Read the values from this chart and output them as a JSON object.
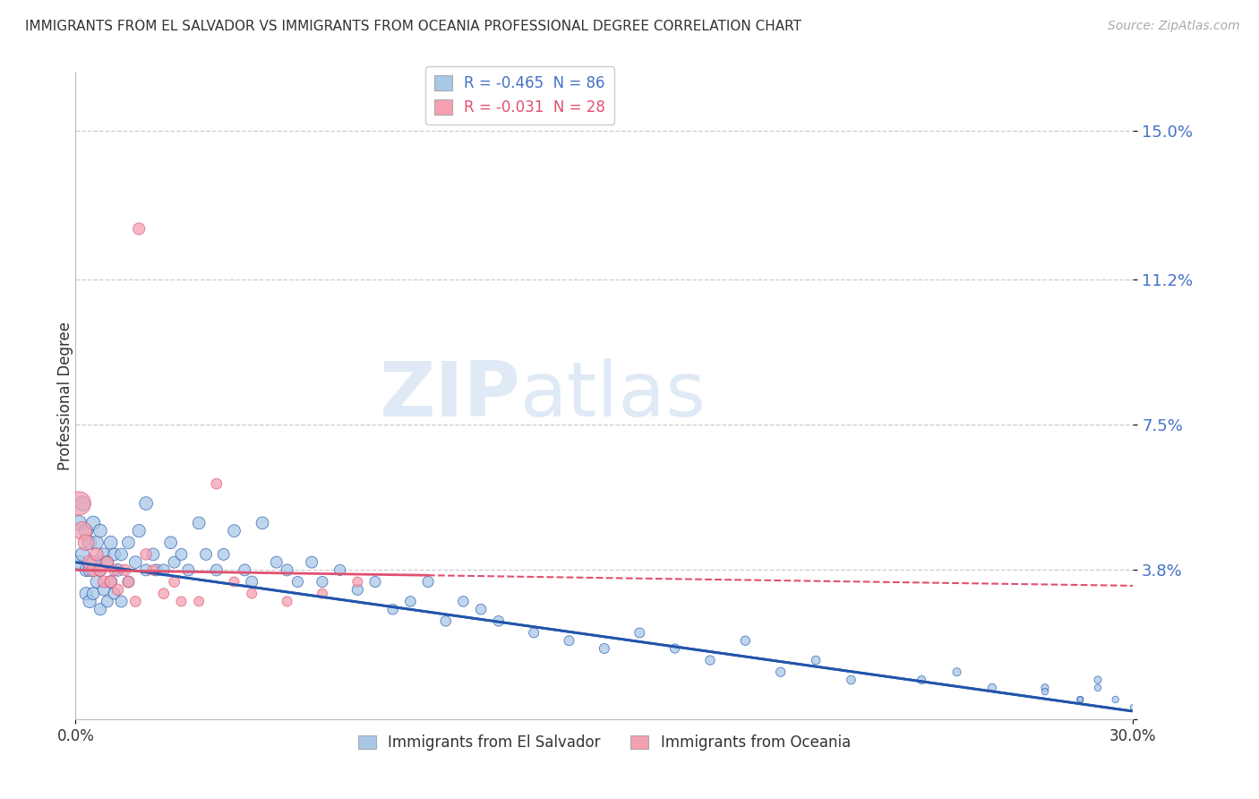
{
  "title": "IMMIGRANTS FROM EL SALVADOR VS IMMIGRANTS FROM OCEANIA PROFESSIONAL DEGREE CORRELATION CHART",
  "source": "Source: ZipAtlas.com",
  "ylabel": "Professional Degree",
  "yticks": [
    0.0,
    0.038,
    0.075,
    0.112,
    0.15
  ],
  "ytick_labels": [
    "",
    "3.8%",
    "7.5%",
    "11.2%",
    "15.0%"
  ],
  "xlim": [
    0.0,
    0.3
  ],
  "ylim": [
    0.0,
    0.165
  ],
  "r_el_salvador": -0.465,
  "n_el_salvador": 86,
  "r_oceania": -0.031,
  "n_oceania": 28,
  "color_el_salvador": "#a8c8e8",
  "color_oceania": "#f4a0b0",
  "trend_color_el_salvador": "#2255aa",
  "trend_color_oceania": "#e05070",
  "watermark_zip": "ZIP",
  "watermark_atlas": "atlas",
  "legend_label_1": "Immigrants from El Salvador",
  "legend_label_2": "Immigrants from Oceania",
  "es_x": [
    0.001,
    0.001,
    0.002,
    0.002,
    0.003,
    0.003,
    0.003,
    0.004,
    0.004,
    0.004,
    0.005,
    0.005,
    0.005,
    0.006,
    0.006,
    0.007,
    0.007,
    0.007,
    0.008,
    0.008,
    0.009,
    0.009,
    0.01,
    0.01,
    0.011,
    0.011,
    0.012,
    0.013,
    0.013,
    0.015,
    0.015,
    0.017,
    0.018,
    0.02,
    0.02,
    0.022,
    0.023,
    0.025,
    0.027,
    0.028,
    0.03,
    0.032,
    0.035,
    0.037,
    0.04,
    0.042,
    0.045,
    0.048,
    0.05,
    0.053,
    0.057,
    0.06,
    0.063,
    0.067,
    0.07,
    0.075,
    0.08,
    0.085,
    0.09,
    0.095,
    0.1,
    0.105,
    0.11,
    0.115,
    0.12,
    0.13,
    0.14,
    0.15,
    0.16,
    0.17,
    0.18,
    0.19,
    0.2,
    0.21,
    0.22,
    0.24,
    0.25,
    0.26,
    0.275,
    0.285,
    0.29,
    0.295,
    0.3,
    0.29,
    0.285,
    0.275
  ],
  "es_y": [
    0.05,
    0.04,
    0.055,
    0.042,
    0.048,
    0.038,
    0.032,
    0.045,
    0.038,
    0.03,
    0.05,
    0.04,
    0.032,
    0.045,
    0.035,
    0.048,
    0.038,
    0.028,
    0.042,
    0.033,
    0.04,
    0.03,
    0.045,
    0.035,
    0.042,
    0.032,
    0.038,
    0.042,
    0.03,
    0.045,
    0.035,
    0.04,
    0.048,
    0.055,
    0.038,
    0.042,
    0.038,
    0.038,
    0.045,
    0.04,
    0.042,
    0.038,
    0.05,
    0.042,
    0.038,
    0.042,
    0.048,
    0.038,
    0.035,
    0.05,
    0.04,
    0.038,
    0.035,
    0.04,
    0.035,
    0.038,
    0.033,
    0.035,
    0.028,
    0.03,
    0.035,
    0.025,
    0.03,
    0.028,
    0.025,
    0.022,
    0.02,
    0.018,
    0.022,
    0.018,
    0.015,
    0.02,
    0.012,
    0.015,
    0.01,
    0.01,
    0.012,
    0.008,
    0.008,
    0.005,
    0.01,
    0.005,
    0.003,
    0.008,
    0.005,
    0.007
  ],
  "es_sizes": [
    40,
    35,
    40,
    35,
    35,
    30,
    30,
    35,
    30,
    30,
    35,
    30,
    28,
    32,
    28,
    32,
    28,
    26,
    30,
    26,
    30,
    25,
    32,
    28,
    28,
    25,
    28,
    28,
    25,
    28,
    25,
    28,
    30,
    32,
    25,
    28,
    25,
    25,
    28,
    25,
    25,
    25,
    28,
    25,
    25,
    25,
    28,
    25,
    25,
    28,
    25,
    25,
    22,
    25,
    22,
    22,
    22,
    22,
    20,
    20,
    22,
    20,
    20,
    20,
    20,
    18,
    18,
    18,
    18,
    16,
    16,
    16,
    16,
    14,
    14,
    12,
    12,
    12,
    10,
    8,
    10,
    8,
    6,
    8,
    6,
    8
  ],
  "oc_x": [
    0.001,
    0.002,
    0.003,
    0.004,
    0.005,
    0.006,
    0.007,
    0.008,
    0.009,
    0.01,
    0.011,
    0.012,
    0.014,
    0.015,
    0.017,
    0.018,
    0.02,
    0.022,
    0.025,
    0.028,
    0.03,
    0.035,
    0.04,
    0.045,
    0.05,
    0.06,
    0.07,
    0.08
  ],
  "oc_y": [
    0.055,
    0.048,
    0.045,
    0.04,
    0.038,
    0.042,
    0.038,
    0.035,
    0.04,
    0.035,
    0.038,
    0.033,
    0.038,
    0.035,
    0.03,
    0.125,
    0.042,
    0.038,
    0.032,
    0.035,
    0.03,
    0.03,
    0.06,
    0.035,
    0.032,
    0.03,
    0.032,
    0.035
  ],
  "oc_sizes": [
    200,
    120,
    90,
    70,
    60,
    60,
    55,
    50,
    50,
    50,
    45,
    45,
    45,
    45,
    40,
    50,
    45,
    40,
    40,
    40,
    35,
    35,
    40,
    35,
    35,
    35,
    35,
    35
  ],
  "trend_es_x0": 0.0,
  "trend_es_y0": 0.04,
  "trend_es_x1": 0.3,
  "trend_es_y1": 0.002,
  "trend_oc_x0": 0.0,
  "trend_oc_y0": 0.038,
  "trend_oc_x1": 0.3,
  "trend_oc_y1": 0.034,
  "trend_oc_solid_end": 0.1
}
